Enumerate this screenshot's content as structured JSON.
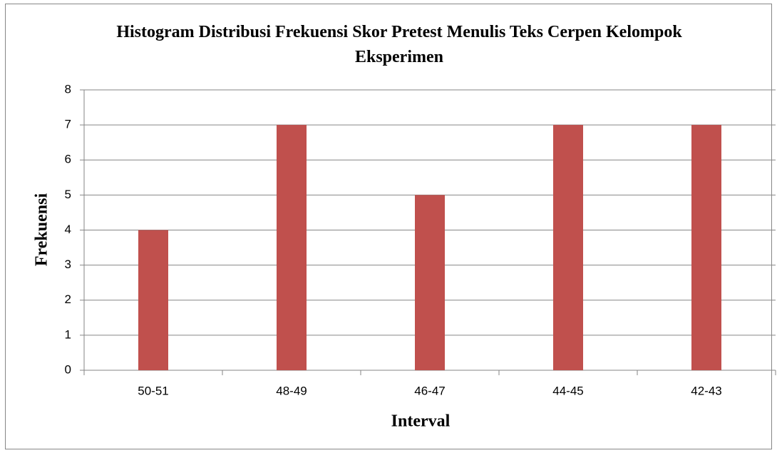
{
  "chart_data": {
    "type": "bar",
    "title": "Histogram Distribusi Frekuensi Skor Pretest Menulis Teks Cerpen Kelompok Eksperimen",
    "x_label": "Interval",
    "y_label": "Frekuensi",
    "categories": [
      "50-51",
      "48-49",
      "46-47",
      "44-45",
      "42-43"
    ],
    "values": [
      4,
      7,
      5,
      7,
      7
    ],
    "color": "#c0504d",
    "ylim": [
      0,
      8
    ],
    "yticks": [
      0,
      1,
      2,
      3,
      4,
      5,
      6,
      7,
      8
    ],
    "grid": true
  }
}
